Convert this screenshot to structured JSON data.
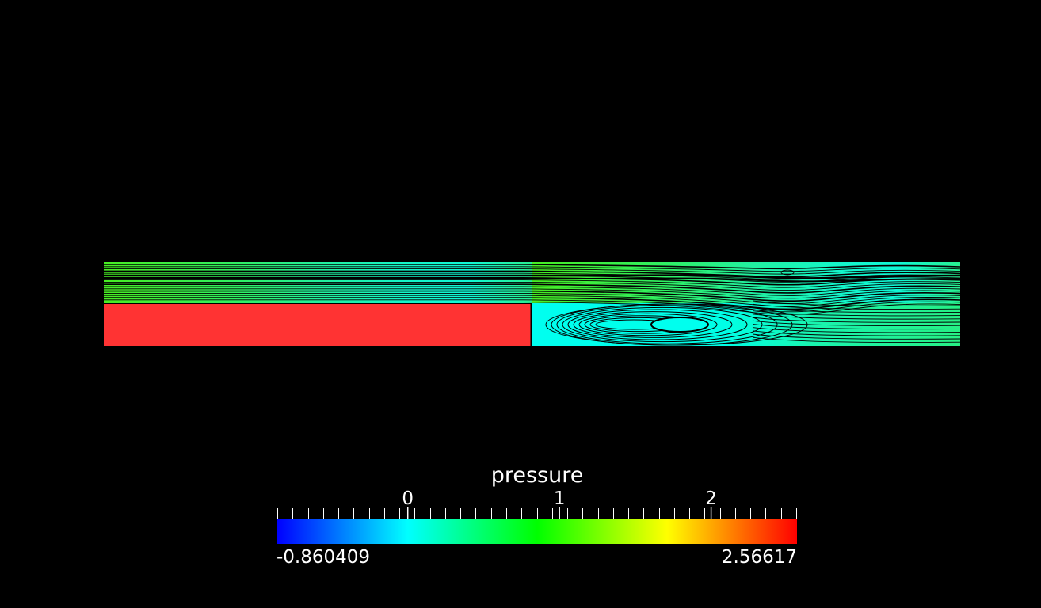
{
  "legend": {
    "title": "pressure",
    "min_label": "-0.860409",
    "max_label": "2.56617",
    "range": [
      -0.860409,
      2.56617
    ],
    "major_ticks": [
      {
        "value": 0,
        "label": "0"
      },
      {
        "value": 1,
        "label": "1"
      },
      {
        "value": 2,
        "label": "2"
      }
    ],
    "colormap": [
      "#0000ff",
      "#00ffff",
      "#00ff00",
      "#ffff00",
      "#ff0000"
    ]
  },
  "scene": {
    "background": "#000000",
    "step_region_color": "#ff3333",
    "streamline_color": "#000000",
    "field_colors": {
      "inlet": "#40f02a",
      "mid": "#20f0a0",
      "recirculation": "#00ffee",
      "outlet": "#20f08a"
    }
  }
}
